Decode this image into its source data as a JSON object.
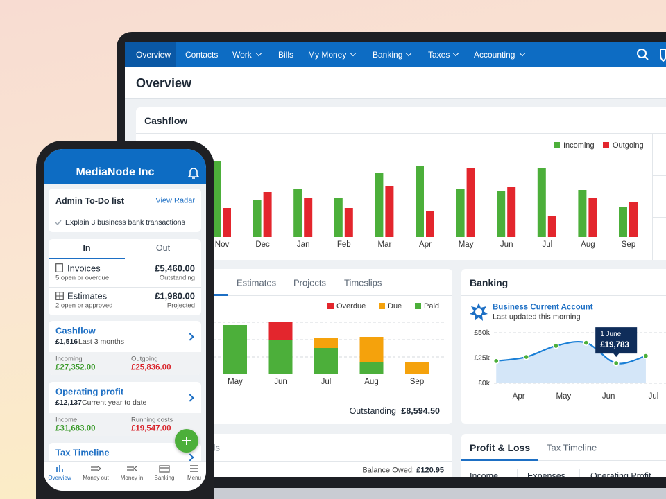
{
  "laptop": {
    "nav": [
      "Overview",
      "Contacts",
      "Work",
      "Bills",
      "My Money",
      "Banking",
      "Taxes",
      "Accounting"
    ],
    "page_title": "Overview",
    "cashflow": {
      "title": "Cashflow",
      "chart_data": {
        "type": "bar",
        "categories": [
          "Nov",
          "Dec",
          "Jan",
          "Feb",
          "Mar",
          "Apr",
          "May",
          "Jun",
          "Jul",
          "Aug",
          "Sep"
        ],
        "series": [
          {
            "name": "Incoming",
            "color": "#4caf3a",
            "values": [
              109,
              54,
              69,
              57,
              93,
              103,
              69,
              66,
              100,
              68,
              43
            ]
          },
          {
            "name": "Outgoing",
            "color": "#e3262d",
            "values": [
              42,
              65,
              56,
              42,
              73,
              38,
              99,
              72,
              31,
              57,
              50
            ]
          }
        ],
        "legend": "top-right"
      }
    },
    "invoices": {
      "tabs": [
        "Estimates",
        "Projects",
        "Timeslips"
      ],
      "chart_data": {
        "type": "stacked-bar",
        "categories": [
          "May",
          "Jun",
          "Jul",
          "Aug",
          "Sep"
        ],
        "series": [
          {
            "name": "Overdue",
            "color": "#e3262d",
            "values": [
              0,
              26,
              0,
              0,
              0
            ]
          },
          {
            "name": "Due",
            "color": "#f5a20c",
            "values": [
              0,
              0,
              14,
              36,
              17
            ]
          },
          {
            "name": "Paid",
            "color": "#4caf3a",
            "values": [
              71,
              49,
              38,
              18,
              0
            ]
          }
        ],
        "grid": true
      },
      "outstanding_label": "Outstanding",
      "outstanding_value": "£8,594.50"
    },
    "banking": {
      "title": "Banking",
      "account": "Business Current Account",
      "updated": "Last updated this morning",
      "chart_data": {
        "type": "line",
        "x": [
          0.5,
          1.17,
          1.83,
          2.5,
          3.17,
          3.83
        ],
        "values": [
          22000,
          26000,
          37000,
          40000,
          19783,
          27000
        ],
        "value_labels": [
          null,
          null,
          null,
          null,
          "£19,783",
          null
        ],
        "annotation": "1 June",
        "color": "#1a7fd6",
        "xlim": [
          0.45,
          4.3
        ],
        "xticks": [
          {
            "value": 1,
            "label": "Apr"
          },
          {
            "value": 2,
            "label": "May"
          },
          {
            "value": 3,
            "label": "Jun"
          },
          {
            "value": 4,
            "label": "Jul"
          }
        ],
        "ylim": [
          0,
          50000
        ],
        "yticks": [
          {
            "value": 0,
            "label": "£0k"
          },
          {
            "value": 25000,
            "label": "£25k"
          },
          {
            "value": 50000,
            "label": "£50k"
          }
        ],
        "grid": true
      }
    },
    "bills": {
      "title": "Bills",
      "balance_label": "Balance Owed:",
      "balance_value": "£120.95"
    },
    "profit_loss": {
      "tabs": [
        "Profit & Loss",
        "Tax Timeline"
      ],
      "columns": [
        "Income",
        "Expenses",
        "Operating Profit"
      ]
    }
  },
  "phone": {
    "company": "MediaNode Inc",
    "todo": {
      "title": "Admin To-Do list",
      "link": "View Radar",
      "item": "Explain 3 business bank transactions"
    },
    "tabs": [
      "In",
      "Out"
    ],
    "rows": [
      {
        "label": "Invoices",
        "amount": "£5,460.00",
        "sub": "5 open or overdue",
        "note": "Outstanding"
      },
      {
        "label": "Estimates",
        "amount": "£1,980.00",
        "sub": "2 open or approved",
        "note": "Projected"
      }
    ],
    "cashflow": {
      "title": "Cashflow",
      "amount": "£1,516",
      "period": "Last 3 months",
      "left_label": "Incoming",
      "left_value": "£27,352.00",
      "right_label": "Outgoing",
      "right_value": "£25,836.00"
    },
    "profit": {
      "title": "Operating profit",
      "amount": "£12,137",
      "period": "Current year to date",
      "left_label": "Income",
      "left_value": "£31,683.00",
      "right_label": "Running costs",
      "right_value": "£19,547.00"
    },
    "tax": {
      "title": "Tax Timeline"
    },
    "bottom_nav": [
      "Overview",
      "Money out",
      "Money in",
      "Banking",
      "Menu"
    ]
  }
}
